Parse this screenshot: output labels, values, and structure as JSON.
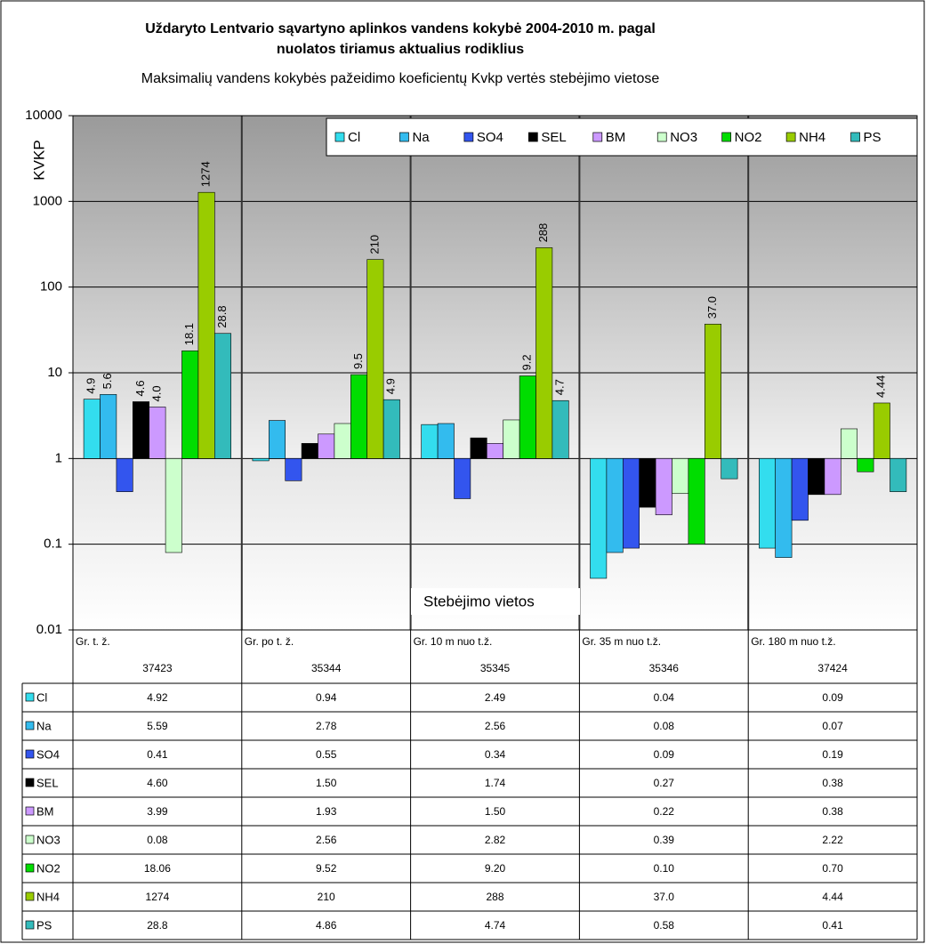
{
  "chart_data": {
    "type": "bar",
    "log_scale": true,
    "grid": true,
    "legend": "top-right",
    "title": [
      "Uždaryto Lentvario sąvartyno aplinkos vandens kokybė 2004-2010 m. pagal",
      "nuolatos tiriamus aktualius rodiklius"
    ],
    "subtitle": "Maksimalių vandens kokybės pažeidimo koeficientų Kvkp vertės stebėjimo vietose",
    "y_label": "KVKP",
    "annotation": "Stebėjimo vietos",
    "categories": [
      "Gr. t. ž.",
      "Gr. po t. ž.",
      "Gr. 10 m nuo t.ž.",
      "Gr. 35 m nuo t.ž.",
      "Gr. 180 m nuo t.ž."
    ],
    "codes": [
      "37423",
      "35344",
      "35345",
      "35346",
      "37424"
    ],
    "ylim": [
      0.01,
      10000
    ],
    "yticks": [
      0.01,
      0.1,
      1,
      10,
      100,
      1000,
      10000
    ],
    "series": [
      {
        "name": "Cl",
        "color": "#33ddee",
        "values": [
          4.92,
          0.94,
          2.49,
          0.04,
          0.09
        ],
        "value_labels": [
          "4.9",
          null,
          null,
          null,
          null
        ],
        "table_values": [
          "4.92",
          "0.94",
          "2.49",
          "0.04",
          "0.09"
        ]
      },
      {
        "name": "Na",
        "color": "#33bbee",
        "values": [
          5.59,
          2.78,
          2.56,
          0.08,
          0.07
        ],
        "value_labels": [
          "5.6",
          null,
          null,
          null,
          null
        ],
        "table_values": [
          "5.59",
          "2.78",
          "2.56",
          "0.08",
          "0.07"
        ]
      },
      {
        "name": "SO4",
        "color": "#3355ee",
        "values": [
          0.41,
          0.55,
          0.34,
          0.09,
          0.19
        ],
        "value_labels": [
          null,
          null,
          null,
          null,
          null
        ],
        "table_values": [
          "0.41",
          "0.55",
          "0.34",
          "0.09",
          "0.19"
        ]
      },
      {
        "name": "SEL",
        "color": "#000000",
        "values": [
          4.6,
          1.5,
          1.74,
          0.27,
          0.38
        ],
        "value_labels": [
          "4.6",
          null,
          null,
          null,
          null
        ],
        "table_values": [
          "4.60",
          "1.50",
          "1.74",
          "0.27",
          "0.38"
        ]
      },
      {
        "name": "BM",
        "color": "#cc99ff",
        "values": [
          3.99,
          1.93,
          1.5,
          0.22,
          0.38
        ],
        "value_labels": [
          "4.0",
          null,
          null,
          null,
          null
        ],
        "table_values": [
          "3.99",
          "1.93",
          "1.50",
          "0.22",
          "0.38"
        ]
      },
      {
        "name": "NO3",
        "color": "#ccffcc",
        "values": [
          0.08,
          2.56,
          2.82,
          0.39,
          2.22
        ],
        "value_labels": [
          null,
          null,
          null,
          null,
          null
        ],
        "table_values": [
          "0.08",
          "2.56",
          "2.82",
          "0.39",
          "2.22"
        ]
      },
      {
        "name": "NO2",
        "color": "#00dd00",
        "values": [
          18.06,
          9.52,
          9.2,
          0.1,
          0.7
        ],
        "value_labels": [
          "18.1",
          "9.5",
          "9.2",
          null,
          null
        ],
        "table_values": [
          "18.06",
          "9.52",
          "9.20",
          "0.10",
          "0.70"
        ]
      },
      {
        "name": "NH4",
        "color": "#99cc00",
        "values": [
          1274,
          210,
          288,
          37,
          4.44
        ],
        "value_labels": [
          "1274",
          "210",
          "288",
          "37.0",
          "4.44"
        ],
        "table_values": [
          "1274",
          "210",
          "288",
          "37.0",
          "4.44"
        ]
      },
      {
        "name": "PS",
        "color": "#33bbbb",
        "values": [
          28.8,
          4.86,
          4.74,
          0.58,
          0.41
        ],
        "value_labels": [
          "28.8",
          "4.9",
          "4.7",
          null,
          null
        ],
        "table_values": [
          "28.8",
          "4.86",
          "4.74",
          "0.58",
          "0.41"
        ]
      }
    ]
  }
}
